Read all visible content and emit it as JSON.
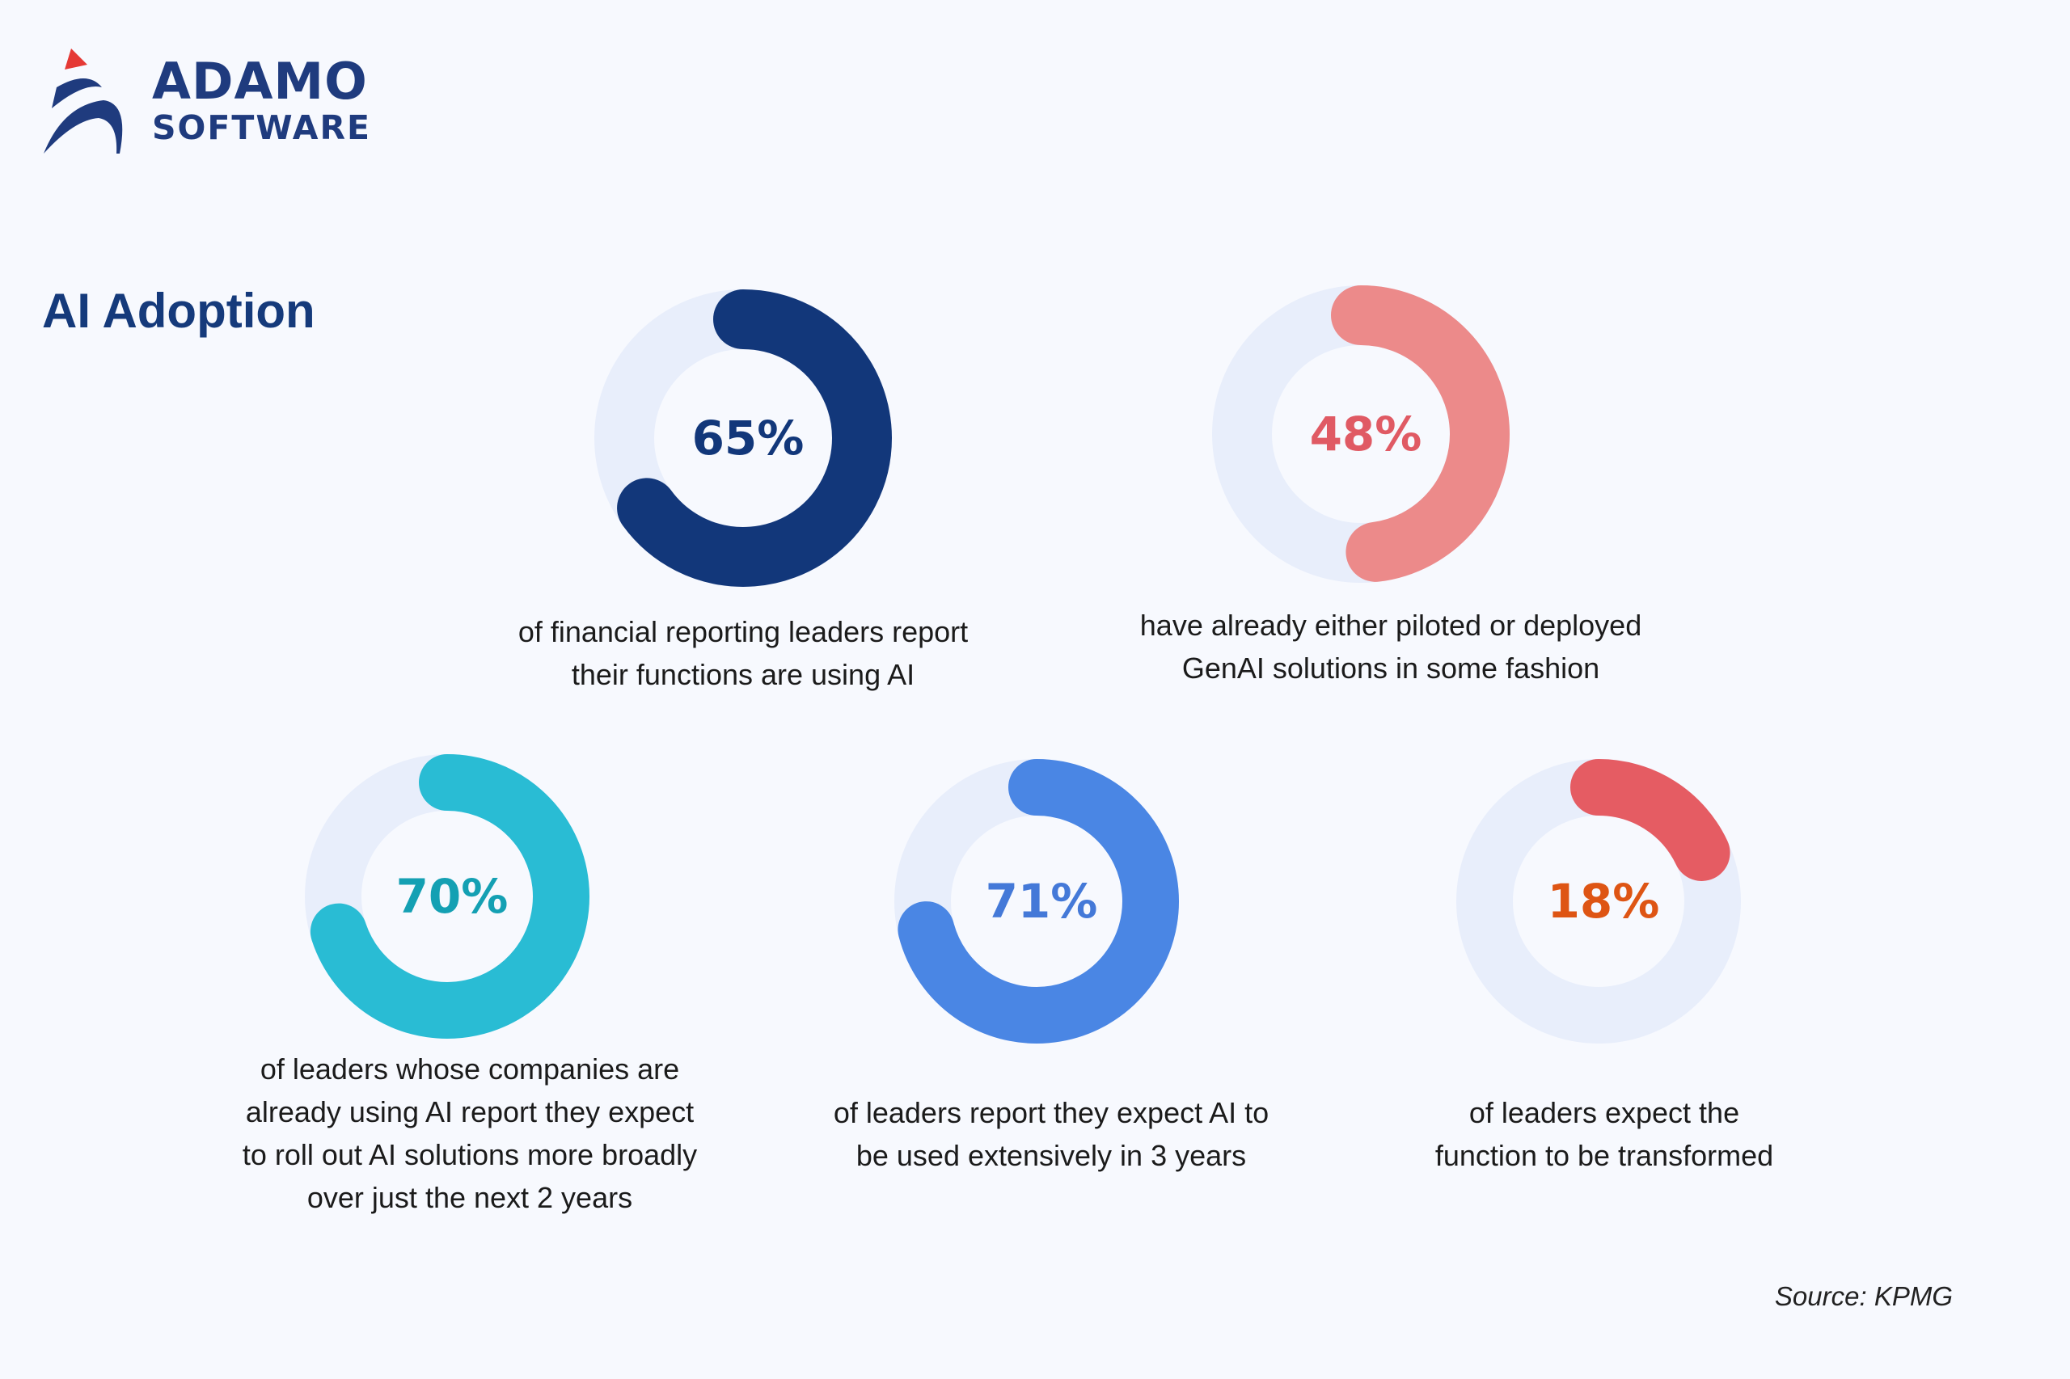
{
  "logo": {
    "line1": "ADAMO",
    "line2": "SOFTWARE"
  },
  "title": "AI Adoption",
  "source": "Source: KPMG",
  "colors": {
    "background": "#f7f9fe",
    "track": "#e8eefb"
  },
  "chart_data": {
    "type": "donut",
    "title": "AI Adoption",
    "items": [
      {
        "value": 65,
        "label": "65%",
        "arc_color": "#12377a",
        "text_color": "#12377a",
        "caption": [
          "of financial reporting leaders report",
          "their functions are using AI"
        ]
      },
      {
        "value": 48,
        "label": "48%",
        "arc_color": "#ec8a8a",
        "text_color": "#e05a64",
        "caption": [
          "have already either piloted or deployed",
          "GenAI solutions in some fashion"
        ]
      },
      {
        "value": 70,
        "label": "70%",
        "arc_color": "#29bcd4",
        "text_color": "#14a0b3",
        "caption": [
          "of leaders whose companies are",
          "already using AI report they expect",
          "to roll out AI solutions more broadly",
          "over just the next 2 years"
        ]
      },
      {
        "value": 71,
        "label": "71%",
        "arc_color": "#4a86e4",
        "text_color": "#4479d8",
        "caption": [
          "of leaders report they expect AI to",
          "be used extensively in 3 years"
        ]
      },
      {
        "value": 18,
        "label": "18%",
        "arc_color": "#e55c63",
        "text_color": "#de5514",
        "caption": [
          "of leaders expect the",
          "function to be transformed"
        ]
      }
    ]
  }
}
